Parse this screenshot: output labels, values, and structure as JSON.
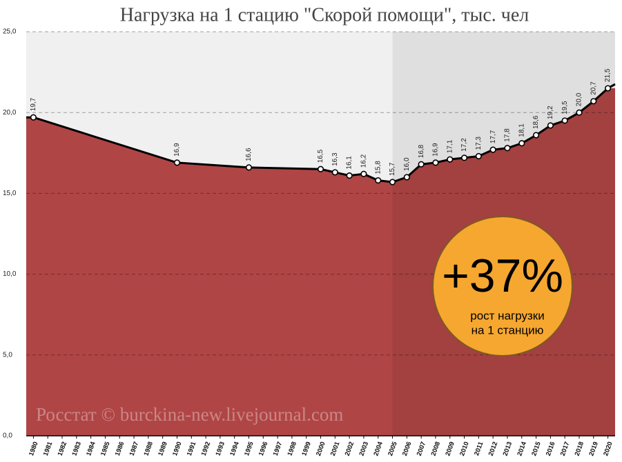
{
  "chart_data": {
    "type": "area",
    "title": "Нагрузка на 1 стацию \"Скорой помощи\", тыс. чел",
    "x": [
      1980,
      1990,
      1995,
      2000,
      2001,
      2002,
      2003,
      2004,
      2005,
      2006,
      2007,
      2008,
      2009,
      2010,
      2011,
      2012,
      2013,
      2014,
      2015,
      2016,
      2017,
      2018,
      2019,
      2020
    ],
    "values": [
      19.7,
      16.9,
      16.6,
      16.5,
      16.3,
      16.1,
      16.2,
      15.8,
      15.7,
      16.0,
      16.8,
      16.9,
      17.1,
      17.2,
      17.3,
      17.7,
      17.8,
      18.1,
      18.6,
      19.2,
      19.5,
      20.0,
      20.7,
      21.5
    ],
    "value_labels": [
      "19,7",
      "16,9",
      "16,6",
      "16,5",
      "16,3",
      "16,1",
      "16,2",
      "15,8",
      "15,7",
      "16,0",
      "16,8",
      "16,9",
      "17,1",
      "17,2",
      "17,3",
      "17,7",
      "17,8",
      "18,1",
      "18,6",
      "19,2",
      "19,5",
      "20,0",
      "20,7",
      "21,5"
    ],
    "xlim": [
      1979.5,
      2020.5
    ],
    "xticks": [
      1980,
      1981,
      1982,
      1983,
      1984,
      1985,
      1986,
      1987,
      1988,
      1989,
      1990,
      1991,
      1992,
      1993,
      1994,
      1995,
      1996,
      1997,
      1998,
      1999,
      2000,
      2001,
      2002,
      2003,
      2004,
      2005,
      2006,
      2007,
      2008,
      2009,
      2010,
      2011,
      2012,
      2013,
      2014,
      2015,
      2016,
      2017,
      2018,
      2019,
      2020
    ],
    "ylim": [
      0,
      25
    ],
    "yticks": [
      {
        "value": 0,
        "label": "0,0"
      },
      {
        "value": 5,
        "label": "5,0"
      },
      {
        "value": 10,
        "label": "10,0"
      },
      {
        "value": 15,
        "label": "15,0"
      },
      {
        "value": 20,
        "label": "20,0"
      },
      {
        "value": 25,
        "label": "25,0"
      }
    ],
    "grid": true,
    "color": "#b04545",
    "line_color": "#000000",
    "highlight_start": 2005,
    "badge": {
      "text": "+37%",
      "lines": [
        "рост нагрузки",
        "на 1 станцию"
      ],
      "color": "#f6a730"
    },
    "source": "Росстат © burckina-new.livejournal.com"
  }
}
